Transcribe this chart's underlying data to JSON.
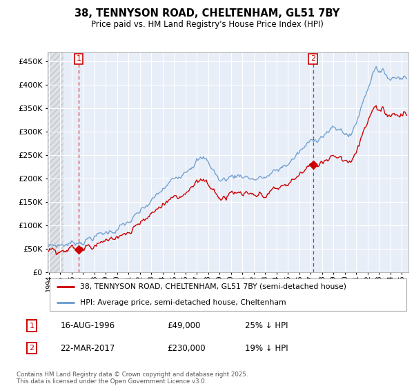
{
  "title": "38, TENNYSON ROAD, CHELTENHAM, GL51 7BY",
  "subtitle": "Price paid vs. HM Land Registry's House Price Index (HPI)",
  "property_label": "38, TENNYSON ROAD, CHELTENHAM, GL51 7BY (semi-detached house)",
  "hpi_label": "HPI: Average price, semi-detached house, Cheltenham",
  "transaction1_date": "16-AUG-1996",
  "transaction1_price": 49000,
  "transaction1_note": "25% ↓ HPI",
  "transaction2_date": "22-MAR-2017",
  "transaction2_price": 230000,
  "transaction2_note": "19% ↓ HPI",
  "footer": "Contains HM Land Registry data © Crown copyright and database right 2025.\nThis data is licensed under the Open Government Licence v3.0.",
  "property_color": "#cc0000",
  "hpi_color": "#6699cc",
  "plot_bg_color": "#e8eef8",
  "grid_color": "#ffffff",
  "ylim": [
    0,
    470000
  ],
  "yticks": [
    0,
    50000,
    100000,
    150000,
    200000,
    250000,
    300000,
    350000,
    400000,
    450000
  ],
  "t1_year": 1996.625,
  "t2_year": 2017.208
}
